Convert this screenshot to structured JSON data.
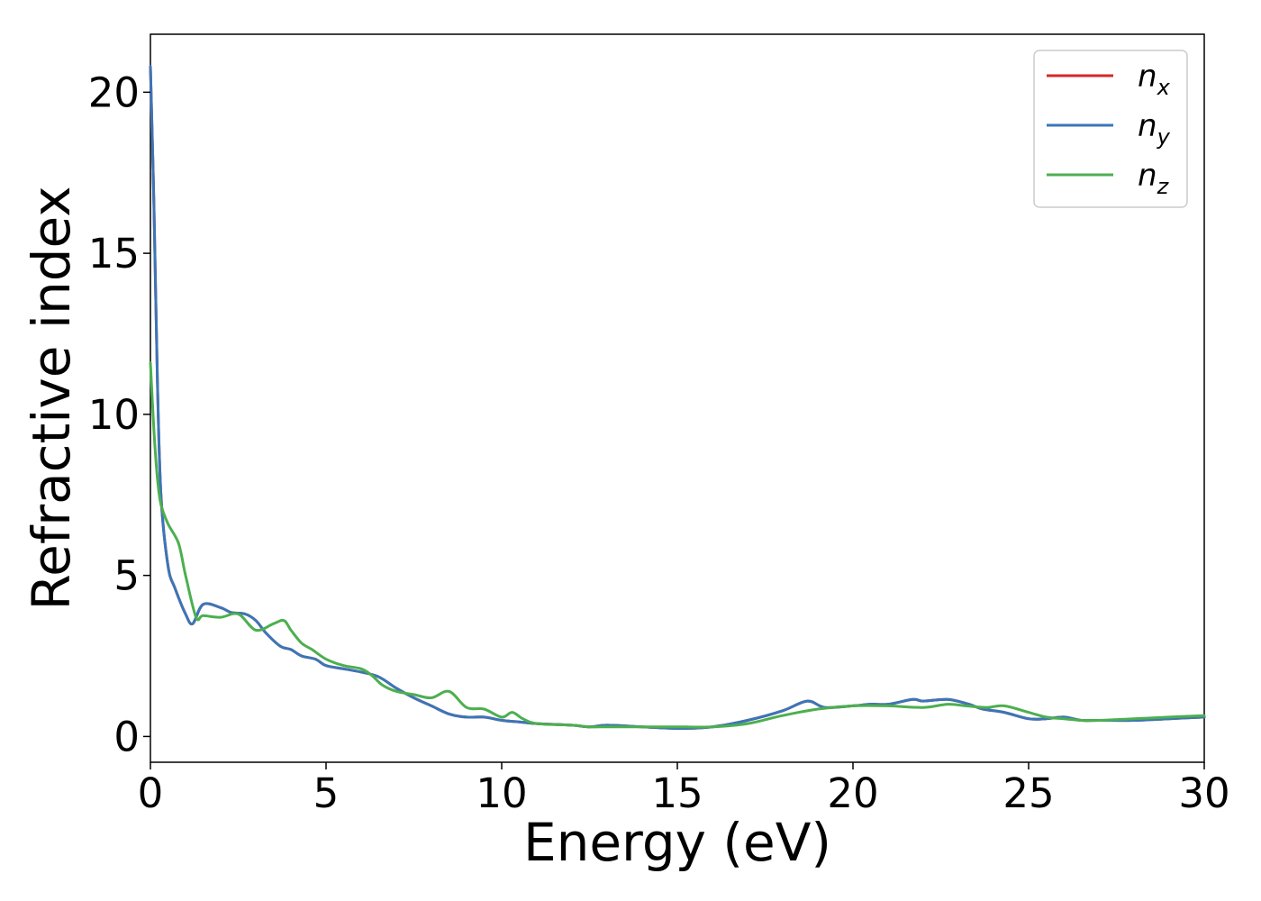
{
  "chart_data": {
    "type": "line",
    "xlabel": "Energy (eV)",
    "ylabel": "Refractive index",
    "xlim": [
      0,
      30
    ],
    "ylim": [
      -0.8,
      21.8
    ],
    "xticks": [
      "0",
      "5",
      "10",
      "15",
      "20",
      "25",
      "30"
    ],
    "yticks": [
      "0",
      "5",
      "10",
      "15",
      "20"
    ],
    "legend_position": "top-right",
    "grid": false,
    "series": [
      {
        "name": "n_x",
        "base": "n",
        "sub": "x",
        "color": "#d62728",
        "x": [
          0,
          0.1,
          0.2,
          0.3,
          0.5,
          0.7,
          1.0,
          1.2,
          1.5,
          2.0,
          2.3,
          2.7,
          3.0,
          3.3,
          3.7,
          4.0,
          4.3,
          4.7,
          5.0,
          5.5,
          6.0,
          6.5,
          7.0,
          7.5,
          8.0,
          8.5,
          9.0,
          9.5,
          10.0,
          10.5,
          11.0,
          12.0,
          12.5,
          13.0,
          14.0,
          15.0,
          16.0,
          17.0,
          18.0,
          18.7,
          19.2,
          20.0,
          20.5,
          21.0,
          21.7,
          22.0,
          22.7,
          23.3,
          23.7,
          24.3,
          25.0,
          25.5,
          26.0,
          26.5,
          27.0,
          28.0,
          29.0,
          30.0
        ],
        "values": [
          20.8,
          16.5,
          11.0,
          7.5,
          5.3,
          4.6,
          3.8,
          3.5,
          4.1,
          4.0,
          3.85,
          3.8,
          3.6,
          3.2,
          2.8,
          2.7,
          2.5,
          2.4,
          2.2,
          2.1,
          2.0,
          1.85,
          1.5,
          1.2,
          0.95,
          0.7,
          0.6,
          0.6,
          0.5,
          0.45,
          0.4,
          0.35,
          0.3,
          0.35,
          0.3,
          0.25,
          0.3,
          0.5,
          0.8,
          1.1,
          0.9,
          0.95,
          1.0,
          1.0,
          1.15,
          1.1,
          1.15,
          1.0,
          0.85,
          0.75,
          0.55,
          0.55,
          0.6,
          0.5,
          0.5,
          0.5,
          0.55,
          0.6
        ]
      },
      {
        "name": "n_y",
        "base": "n",
        "sub": "y",
        "color": "#3a76b8",
        "x": [
          0,
          0.1,
          0.2,
          0.3,
          0.5,
          0.7,
          1.0,
          1.2,
          1.5,
          2.0,
          2.3,
          2.7,
          3.0,
          3.3,
          3.7,
          4.0,
          4.3,
          4.7,
          5.0,
          5.5,
          6.0,
          6.5,
          7.0,
          7.5,
          8.0,
          8.5,
          9.0,
          9.5,
          10.0,
          10.5,
          11.0,
          12.0,
          12.5,
          13.0,
          14.0,
          15.0,
          16.0,
          17.0,
          18.0,
          18.7,
          19.2,
          20.0,
          20.5,
          21.0,
          21.7,
          22.0,
          22.7,
          23.3,
          23.7,
          24.3,
          25.0,
          25.5,
          26.0,
          26.5,
          27.0,
          28.0,
          29.0,
          30.0
        ],
        "values": [
          20.8,
          16.5,
          11.0,
          7.5,
          5.3,
          4.6,
          3.8,
          3.5,
          4.1,
          4.0,
          3.85,
          3.8,
          3.6,
          3.2,
          2.8,
          2.7,
          2.5,
          2.4,
          2.2,
          2.1,
          2.0,
          1.85,
          1.5,
          1.2,
          0.95,
          0.7,
          0.6,
          0.6,
          0.5,
          0.45,
          0.4,
          0.35,
          0.3,
          0.35,
          0.3,
          0.25,
          0.3,
          0.5,
          0.8,
          1.1,
          0.9,
          0.95,
          1.0,
          1.0,
          1.15,
          1.1,
          1.15,
          1.0,
          0.85,
          0.75,
          0.55,
          0.55,
          0.6,
          0.5,
          0.5,
          0.5,
          0.55,
          0.6
        ]
      },
      {
        "name": "n_z",
        "base": "n",
        "sub": "z",
        "color": "#4caf4f",
        "x": [
          0,
          0.1,
          0.2,
          0.3,
          0.5,
          0.8,
          1.0,
          1.3,
          1.5,
          2.0,
          2.5,
          3.0,
          3.5,
          3.8,
          4.0,
          4.3,
          4.6,
          5.0,
          5.5,
          6.0,
          6.3,
          6.6,
          7.0,
          7.5,
          8.0,
          8.5,
          9.0,
          9.5,
          10.0,
          10.3,
          10.6,
          11.0,
          12.0,
          12.5,
          13.0,
          14.0,
          15.0,
          16.0,
          17.0,
          18.0,
          19.0,
          20.0,
          21.0,
          22.0,
          22.7,
          23.2,
          23.8,
          24.3,
          25.0,
          25.5,
          26.0,
          26.5,
          27.0,
          28.0,
          29.0,
          30.0
        ],
        "values": [
          11.6,
          9.5,
          8.0,
          7.2,
          6.6,
          6.0,
          5.0,
          3.7,
          3.75,
          3.7,
          3.8,
          3.3,
          3.5,
          3.6,
          3.3,
          2.9,
          2.7,
          2.4,
          2.2,
          2.1,
          1.9,
          1.6,
          1.4,
          1.3,
          1.2,
          1.4,
          0.9,
          0.85,
          0.6,
          0.75,
          0.55,
          0.4,
          0.35,
          0.3,
          0.3,
          0.3,
          0.3,
          0.3,
          0.4,
          0.65,
          0.85,
          0.95,
          0.95,
          0.9,
          1.0,
          0.95,
          0.9,
          0.95,
          0.75,
          0.6,
          0.55,
          0.5,
          0.5,
          0.55,
          0.6,
          0.65
        ]
      }
    ]
  }
}
